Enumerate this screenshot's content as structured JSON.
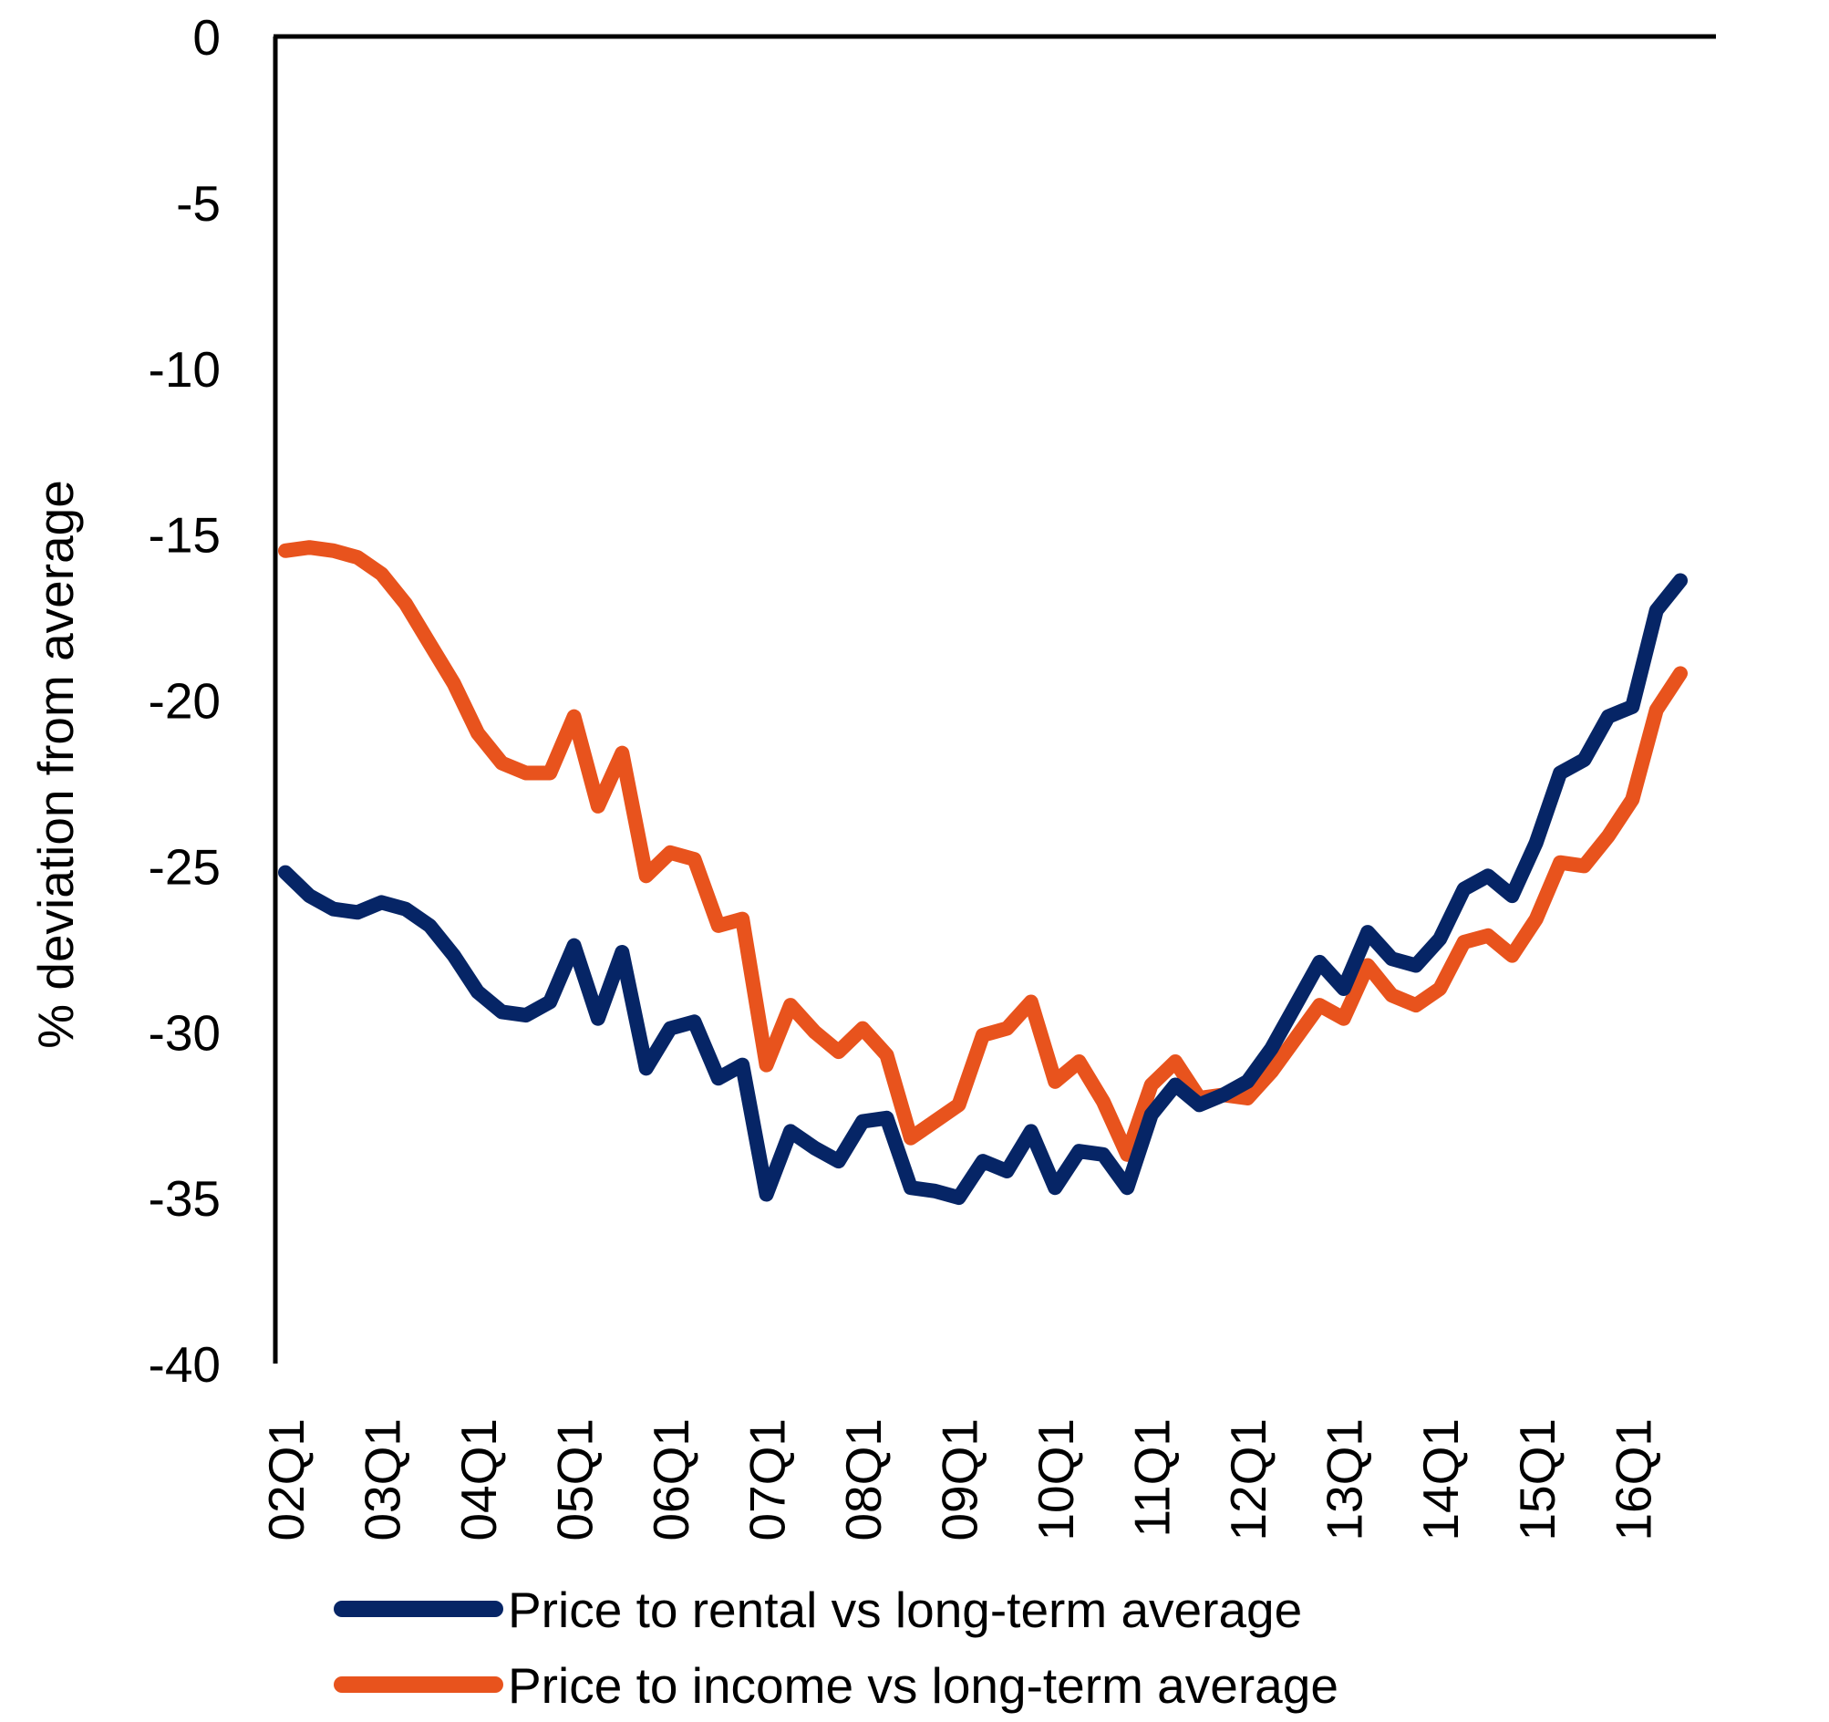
{
  "chart_data": {
    "type": "line",
    "title": "",
    "xlabel": "",
    "ylabel": "% deviation from average",
    "ylim": [
      -40,
      0
    ],
    "yticks": [
      0,
      -5,
      -10,
      -15,
      -20,
      -25,
      -30,
      -35,
      -40
    ],
    "ytick_labels": [
      "0",
      "-5",
      "-10",
      "-15",
      "-20",
      "-25",
      "-30",
      "-35",
      "-40"
    ],
    "grid": false,
    "legend_position": "bottom",
    "x": [
      "02Q1",
      "02Q2",
      "02Q3",
      "02Q4",
      "03Q1",
      "03Q2",
      "03Q3",
      "03Q4",
      "04Q1",
      "04Q2",
      "04Q3",
      "04Q4",
      "05Q1",
      "05Q2",
      "05Q3",
      "05Q4",
      "06Q1",
      "06Q2",
      "06Q3",
      "06Q4",
      "07Q1",
      "07Q2",
      "07Q3",
      "07Q4",
      "08Q1",
      "08Q2",
      "08Q3",
      "08Q4",
      "09Q1",
      "09Q2",
      "09Q3",
      "09Q4",
      "10Q1",
      "10Q2",
      "10Q3",
      "10Q4",
      "11Q1",
      "11Q2",
      "11Q3",
      "11Q4",
      "12Q1",
      "12Q2",
      "12Q3",
      "12Q4",
      "13Q1",
      "13Q2",
      "13Q3",
      "13Q4",
      "14Q1",
      "14Q2",
      "14Q3",
      "14Q4",
      "15Q1",
      "15Q2",
      "15Q3",
      "15Q4",
      "16Q1",
      "16Q2",
      "16Q3"
    ],
    "xtick_labels": [
      "02Q1",
      "03Q1",
      "04Q1",
      "05Q1",
      "06Q1",
      "07Q1",
      "08Q1",
      "09Q1",
      "10Q1",
      "11Q1",
      "12Q1",
      "13Q1",
      "14Q1",
      "15Q1",
      "16Q1"
    ],
    "series": [
      {
        "name": "Price to rental vs long-term average",
        "color": "#062566",
        "values": [
          -25.2,
          -25.9,
          -26.3,
          -26.4,
          -26.1,
          -26.3,
          -26.8,
          -27.7,
          -28.8,
          -29.4,
          -29.5,
          -29.1,
          -27.4,
          -29.6,
          -27.6,
          -31.1,
          -29.9,
          -29.7,
          -31.4,
          -31.0,
          -34.9,
          -33.0,
          -33.5,
          -33.9,
          -32.7,
          -32.6,
          -34.7,
          -34.8,
          -35.0,
          -33.9,
          -34.2,
          -33.0,
          -34.7,
          -33.6,
          -33.7,
          -34.7,
          -32.5,
          -31.6,
          -32.2,
          -31.9,
          -31.5,
          -30.5,
          -29.2,
          -27.9,
          -28.7,
          -27.0,
          -27.8,
          -28.0,
          -27.2,
          -25.7,
          -25.3,
          -25.9,
          -24.3,
          -22.2,
          -21.8,
          -20.5,
          -20.2,
          -17.3,
          -16.4
        ]
      },
      {
        "name": "Price to income vs long-term average",
        "color": "#E8531D",
        "values": [
          -15.5,
          -15.4,
          -15.5,
          -15.7,
          -16.2,
          -17.1,
          -18.3,
          -19.5,
          -21.0,
          -21.9,
          -22.2,
          -22.2,
          -20.5,
          -23.2,
          -21.6,
          -25.3,
          -24.6,
          -24.8,
          -26.8,
          -26.6,
          -31.0,
          -29.2,
          -30.0,
          -30.6,
          -29.9,
          -30.7,
          -33.2,
          -32.7,
          -32.2,
          -30.1,
          -29.9,
          -29.1,
          -31.5,
          -30.9,
          -32.1,
          -33.7,
          -31.6,
          -30.9,
          -32.0,
          -31.9,
          -32.0,
          -31.2,
          -30.2,
          -29.2,
          -29.6,
          -28.0,
          -28.9,
          -29.2,
          -28.7,
          -27.3,
          -27.1,
          -27.7,
          -26.6,
          -24.9,
          -25.0,
          -24.1,
          -23.0,
          -20.3,
          -19.2
        ]
      }
    ]
  }
}
